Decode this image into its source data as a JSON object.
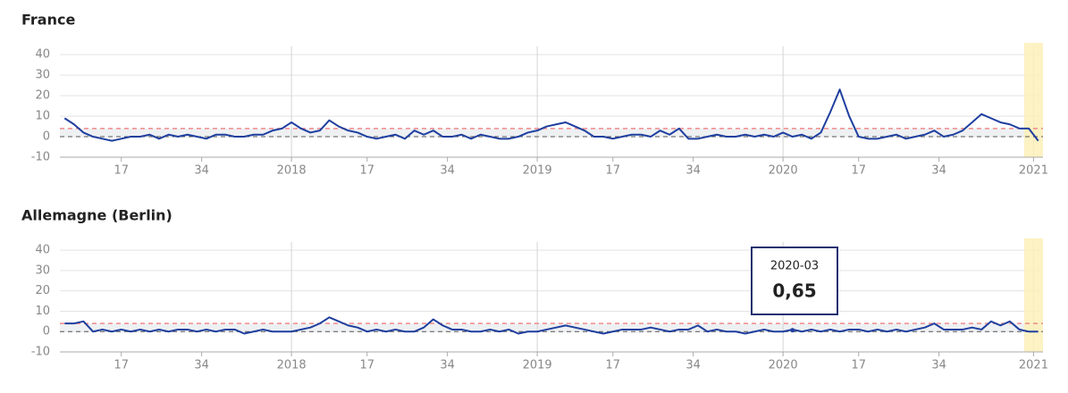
{
  "chart_data": [
    {
      "type": "line",
      "title": "France",
      "x": [
        5,
        7,
        9,
        11,
        13,
        15,
        17,
        19,
        21,
        23,
        25,
        27,
        29,
        31,
        33,
        35,
        37,
        39,
        41,
        43,
        45,
        47,
        49,
        51,
        53,
        55,
        57,
        59,
        61,
        63,
        65,
        67,
        69,
        71,
        73,
        75,
        77,
        79,
        81,
        83,
        85,
        87,
        89,
        91,
        93,
        95,
        97,
        99,
        101,
        103,
        105,
        107,
        109,
        111,
        113,
        115,
        117,
        119,
        121,
        123,
        125,
        127,
        129,
        131,
        133,
        135,
        137,
        139,
        141,
        143,
        145,
        147,
        149,
        151,
        153,
        155,
        157,
        159,
        161,
        163,
        165,
        167,
        169,
        171,
        173,
        175,
        177,
        179,
        181,
        183,
        185,
        187,
        189,
        191,
        193,
        195,
        197,
        199,
        201,
        203,
        205,
        207,
        209,
        211
      ],
      "series": [
        {
          "color": "#1f3f9f",
          "values": [
            9,
            6,
            2,
            0,
            -1,
            -2,
            -1,
            0,
            0,
            1,
            -1,
            1,
            0,
            1,
            0,
            -1,
            1,
            1,
            0,
            0,
            1,
            1,
            3,
            4,
            7,
            4,
            2,
            3,
            8,
            5,
            3,
            2,
            0,
            -1,
            0,
            1,
            -1,
            3,
            1,
            3,
            0,
            0,
            1,
            -1,
            1,
            0,
            -1,
            -1,
            0,
            2,
            3,
            5,
            6,
            7,
            5,
            3,
            0,
            0,
            -1,
            0,
            1,
            1,
            0,
            3,
            1,
            4,
            -1,
            -1,
            0,
            1,
            0,
            0,
            1,
            0,
            1,
            0,
            2,
            0,
            1,
            -1,
            2,
            12,
            23,
            10,
            0,
            -1,
            -1,
            0,
            1,
            -1,
            0,
            1,
            3,
            0,
            1,
            3,
            7,
            11,
            9,
            7,
            6,
            4,
            4,
            -2
          ]
        }
      ],
      "xlim": [
        4,
        212
      ],
      "ylim": [
        -10,
        44
      ],
      "yticks": [
        -10,
        0,
        10,
        20,
        30,
        40
      ],
      "xticks": [
        17,
        34,
        {
          "value": 53,
          "label": "2018"
        },
        {
          "value": 69,
          "label": "17"
        },
        {
          "value": 86,
          "label": "34"
        },
        {
          "value": 105,
          "label": "2019"
        },
        {
          "value": 121,
          "label": "17"
        },
        {
          "value": 138,
          "label": "34"
        },
        {
          "value": 157,
          "label": "2020"
        },
        {
          "value": 173,
          "label": "17"
        },
        {
          "value": 190,
          "label": "34"
        },
        {
          "value": 210,
          "label": "2021"
        }
      ],
      "threshold": 4,
      "highlight": [
        208,
        212
      ],
      "grid": true
    },
    {
      "type": "line",
      "title": "Allemagne (Berlin)",
      "x": [
        5,
        7,
        9,
        11,
        13,
        15,
        17,
        19,
        21,
        23,
        25,
        27,
        29,
        31,
        33,
        35,
        37,
        39,
        41,
        43,
        45,
        47,
        49,
        51,
        53,
        55,
        57,
        59,
        61,
        63,
        65,
        67,
        69,
        71,
        73,
        75,
        77,
        79,
        81,
        83,
        85,
        87,
        89,
        91,
        93,
        95,
        97,
        99,
        101,
        103,
        105,
        107,
        109,
        111,
        113,
        115,
        117,
        119,
        121,
        123,
        125,
        127,
        129,
        131,
        133,
        135,
        137,
        139,
        141,
        143,
        145,
        147,
        149,
        151,
        153,
        155,
        157,
        159,
        161,
        163,
        165,
        167,
        169,
        171,
        173,
        175,
        177,
        179,
        181,
        183,
        185,
        187,
        189,
        191,
        193,
        195,
        197,
        199,
        201,
        203,
        205,
        207,
        209,
        211
      ],
      "series": [
        {
          "color": "#1f3f9f",
          "values": [
            4,
            4,
            5,
            0,
            1,
            0,
            1,
            0,
            1,
            0,
            1,
            0,
            1,
            1,
            0,
            1,
            0,
            1,
            1,
            -1,
            0,
            1,
            0,
            0,
            0,
            1,
            2,
            4,
            7,
            5,
            3,
            2,
            0,
            1,
            0,
            1,
            0,
            0,
            2,
            6,
            3,
            1,
            1,
            0,
            0,
            1,
            0,
            1,
            -1,
            0,
            0,
            1,
            2,
            3,
            2,
            1,
            0,
            -1,
            0,
            1,
            1,
            1,
            2,
            1,
            0,
            1,
            1,
            3,
            0,
            1,
            0,
            0,
            -1,
            0,
            1,
            0,
            0,
            1,
            0,
            1,
            0,
            1,
            0,
            1,
            1,
            0,
            1,
            0,
            1,
            0,
            1,
            2,
            4,
            1,
            1,
            1,
            2,
            1,
            5,
            3,
            5,
            1,
            0,
            0
          ]
        }
      ],
      "xlim": [
        4,
        212
      ],
      "ylim": [
        -10,
        44
      ],
      "yticks": [
        -10,
        0,
        10,
        20,
        30,
        40
      ],
      "xticks": [
        17,
        34,
        {
          "value": 53,
          "label": "2018"
        },
        {
          "value": 69,
          "label": "17"
        },
        {
          "value": 86,
          "label": "34"
        },
        {
          "value": 105,
          "label": "2019"
        },
        {
          "value": 121,
          "label": "17"
        },
        {
          "value": 138,
          "label": "34"
        },
        {
          "value": 157,
          "label": "2020"
        },
        {
          "value": 173,
          "label": "17"
        },
        {
          "value": 190,
          "label": "34"
        },
        {
          "value": 210,
          "label": "2021"
        }
      ],
      "threshold": 4,
      "highlight": [
        208,
        212
      ],
      "grid": true,
      "tooltip": {
        "title": "2020-03",
        "x": 159,
        "value": 0.65,
        "value_label": "0,65"
      }
    }
  ]
}
